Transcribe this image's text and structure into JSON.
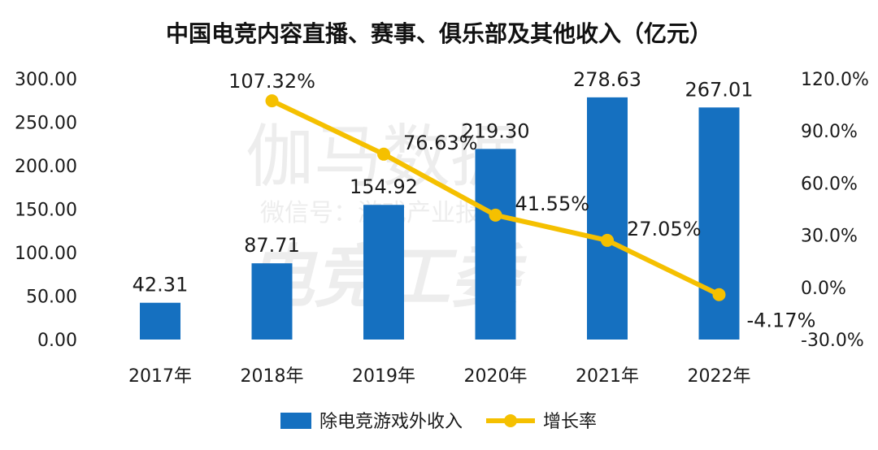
{
  "chart_data": {
    "type": "bar+line",
    "title": "中国电竞内容直播、赛事、俱乐部及其他收入（亿元）",
    "categories": [
      "2017年",
      "2018年",
      "2019年",
      "2020年",
      "2021年",
      "2022年"
    ],
    "series": [
      {
        "name": "除电竞游戏外收入",
        "type": "bar",
        "axis": "left",
        "color": "#1570c0",
        "values": [
          42.31,
          87.71,
          154.92,
          219.3,
          278.63,
          267.01
        ],
        "labels": [
          "42.31",
          "87.71",
          "154.92",
          "219.30",
          "278.63",
          "267.01"
        ]
      },
      {
        "name": "增长率",
        "type": "line",
        "axis": "right",
        "color": "#f5c000",
        "values": [
          null,
          107.32,
          76.63,
          41.55,
          27.05,
          -4.17
        ],
        "labels": [
          "",
          "107.32%",
          "76.63%",
          "41.55%",
          "27.05%",
          "-4.17%"
        ]
      }
    ],
    "y_left": {
      "ylim": [
        0,
        300
      ],
      "ticks": [
        "0.00",
        "50.00",
        "100.00",
        "150.00",
        "200.00",
        "250.00",
        "300.00"
      ]
    },
    "y_right": {
      "ylim": [
        -30,
        120
      ],
      "ticks": [
        "-30.0%",
        "0.0%",
        "30.0%",
        "60.0%",
        "90.0%",
        "120.0%"
      ]
    },
    "legend_position": "bottom",
    "grid": false
  },
  "watermark": {
    "line1": "伽马数据",
    "line2": "微信号：游戏产业报告",
    "line3": "电竞工委"
  }
}
